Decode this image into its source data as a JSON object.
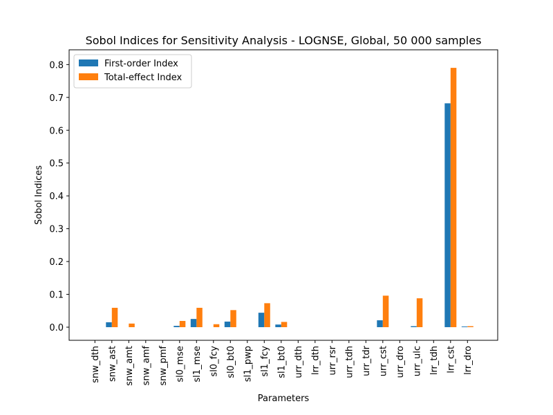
{
  "chart_data": {
    "type": "bar",
    "title": "Sobol Indices for Sensitivity Analysis - LOGNSE, Global, 50 000 samples",
    "xlabel": "Parameters",
    "ylabel": "Sobol Indices",
    "ylim": [
      -0.04,
      0.845
    ],
    "yticks": [
      0.0,
      0.1,
      0.2,
      0.3,
      0.4,
      0.5,
      0.6,
      0.7,
      0.8
    ],
    "ytick_labels": [
      "0.0",
      "0.1",
      "0.2",
      "0.3",
      "0.4",
      "0.5",
      "0.6",
      "0.7",
      "0.8"
    ],
    "grid": false,
    "legend_position": "upper-left",
    "categories": [
      "snw_dth",
      "snw_ast",
      "snw_amt",
      "snw_amf",
      "snw_pmf",
      "sl0_mse",
      "sl1_mse",
      "sl0_fcy",
      "sl0_bt0",
      "sl1_pwp",
      "sl1_fcy",
      "sl1_bt0",
      "urr_dth",
      "lrr_dth",
      "urr_rsr",
      "urr_tdh",
      "urr_tdr",
      "urr_cst",
      "urr_dro",
      "urr_ulc",
      "lrr_tdh",
      "lrr_cst",
      "lrr_dro"
    ],
    "series": [
      {
        "name": "First-order Index",
        "color": "#1f77b4",
        "values": [
          0.0,
          0.015,
          0.0,
          0.0,
          0.0,
          0.004,
          0.025,
          0.0,
          0.017,
          0.0,
          0.044,
          0.008,
          0.0,
          0.0,
          0.0,
          0.0,
          0.0,
          0.021,
          0.0,
          0.003,
          0.0,
          0.682,
          0.002
        ]
      },
      {
        "name": "Total-effect Index",
        "color": "#ff7f0e",
        "values": [
          0.0,
          0.059,
          0.011,
          0.0,
          0.0,
          0.019,
          0.059,
          0.009,
          0.052,
          0.0,
          0.073,
          0.016,
          0.0,
          0.0,
          0.0,
          0.0,
          0.0,
          0.096,
          0.0,
          0.088,
          0.0,
          0.79,
          0.003
        ]
      }
    ]
  }
}
